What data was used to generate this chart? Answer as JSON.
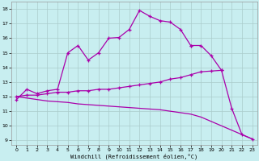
{
  "xlabel": "Windchill (Refroidissement éolien,°C)",
  "background_color": "#c8eef0",
  "line_color": "#aa00aa",
  "grid_color": "#aacccc",
  "xlim": [
    -0.5,
    23.5
  ],
  "ylim": [
    8.7,
    18.5
  ],
  "yticks": [
    9,
    10,
    11,
    12,
    13,
    14,
    15,
    16,
    17,
    18
  ],
  "xticks": [
    0,
    1,
    2,
    3,
    4,
    5,
    6,
    7,
    8,
    9,
    10,
    11,
    12,
    13,
    14,
    15,
    16,
    17,
    18,
    19,
    20,
    21,
    22,
    23
  ],
  "curve1_x": [
    0,
    1,
    2,
    3,
    4,
    5,
    6,
    7,
    8,
    9,
    10,
    11,
    12,
    13,
    14,
    15,
    16,
    17
  ],
  "curve1_y": [
    11.8,
    12.5,
    12.2,
    12.4,
    12.5,
    15.0,
    15.5,
    14.5,
    15.0,
    16.0,
    16.05,
    16.6,
    17.9,
    17.5,
    17.2,
    17.1,
    16.6,
    15.5
  ],
  "curve2_x": [
    0,
    1,
    2,
    3,
    4,
    5,
    6,
    7,
    8,
    9,
    10,
    11,
    12,
    13,
    14,
    15,
    16,
    17,
    18,
    19,
    20
  ],
  "curve2_y": [
    12.0,
    12.1,
    12.1,
    12.2,
    12.3,
    12.3,
    12.4,
    12.4,
    12.5,
    12.5,
    12.6,
    12.7,
    12.8,
    12.9,
    13.0,
    13.2,
    13.3,
    13.5,
    13.7,
    13.75,
    13.8
  ],
  "curve3_x": [
    0,
    1,
    2,
    3,
    4,
    5,
    6,
    7,
    8,
    9,
    10,
    11,
    12,
    13,
    14,
    15,
    16,
    17,
    18,
    19,
    20,
    21,
    22,
    23
  ],
  "curve3_y": [
    12.0,
    11.9,
    11.8,
    11.7,
    11.65,
    11.6,
    11.5,
    11.45,
    11.4,
    11.35,
    11.3,
    11.25,
    11.2,
    11.15,
    11.1,
    11.0,
    10.9,
    10.8,
    10.6,
    10.3,
    10.0,
    9.7,
    9.4,
    9.1
  ],
  "curve4_x": [
    17,
    18,
    19,
    20,
    21,
    22,
    23
  ],
  "curve4_y": [
    15.5,
    15.5,
    14.8,
    13.8,
    11.2,
    9.4,
    9.1
  ]
}
